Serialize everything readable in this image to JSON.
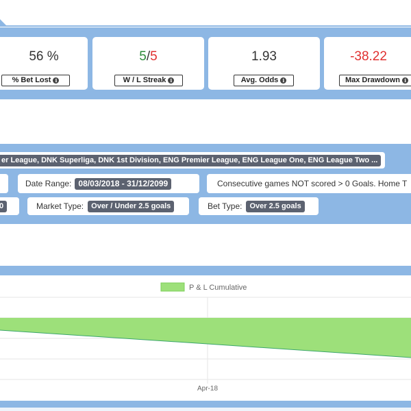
{
  "stats": [
    {
      "value": "56 %",
      "label": "% Bet Lost"
    },
    {
      "value_win": "5",
      "value_sep": "/",
      "value_loss": "5",
      "label": "W / L Streak"
    },
    {
      "value": "1.93",
      "label": "Avg. Odds"
    },
    {
      "value": "-38.22",
      "label": "Max Drawdown"
    }
  ],
  "filters": {
    "leagues": "er League, DNK Superliga, DNK 1st Division, ENG Premier League, ENG League One, ENG League Two ...",
    "date_range_label": "Date Range:",
    "date_range_value": "08/03/2018 - 31/12/2099",
    "condition_text": "Consecutive games NOT scored > 0 Goals. Home T",
    "left_fragment": "0",
    "market_type_label": "Market Type:",
    "market_type_value": "Over / Under 2.5 goals",
    "bet_type_label": "Bet Type:",
    "bet_type_value": "Over 2.5 goals"
  },
  "chart_data": {
    "type": "area",
    "legend": "P & L Cumulative",
    "x_tick_labels": [
      "Apr-18"
    ],
    "series": [
      {
        "name": "P & L Cumulative",
        "x": [
          "start",
          "Apr-18",
          "end"
        ],
        "values": [
          0.5,
          0.25,
          0.0
        ]
      }
    ]
  },
  "colors": {
    "band": "#8db7e4",
    "area_fill": "#9de07a",
    "area_line": "#3aa66a",
    "positive": "#2e8b3a",
    "negative": "#e03030"
  },
  "icons": {
    "info": "info-circle-icon"
  }
}
